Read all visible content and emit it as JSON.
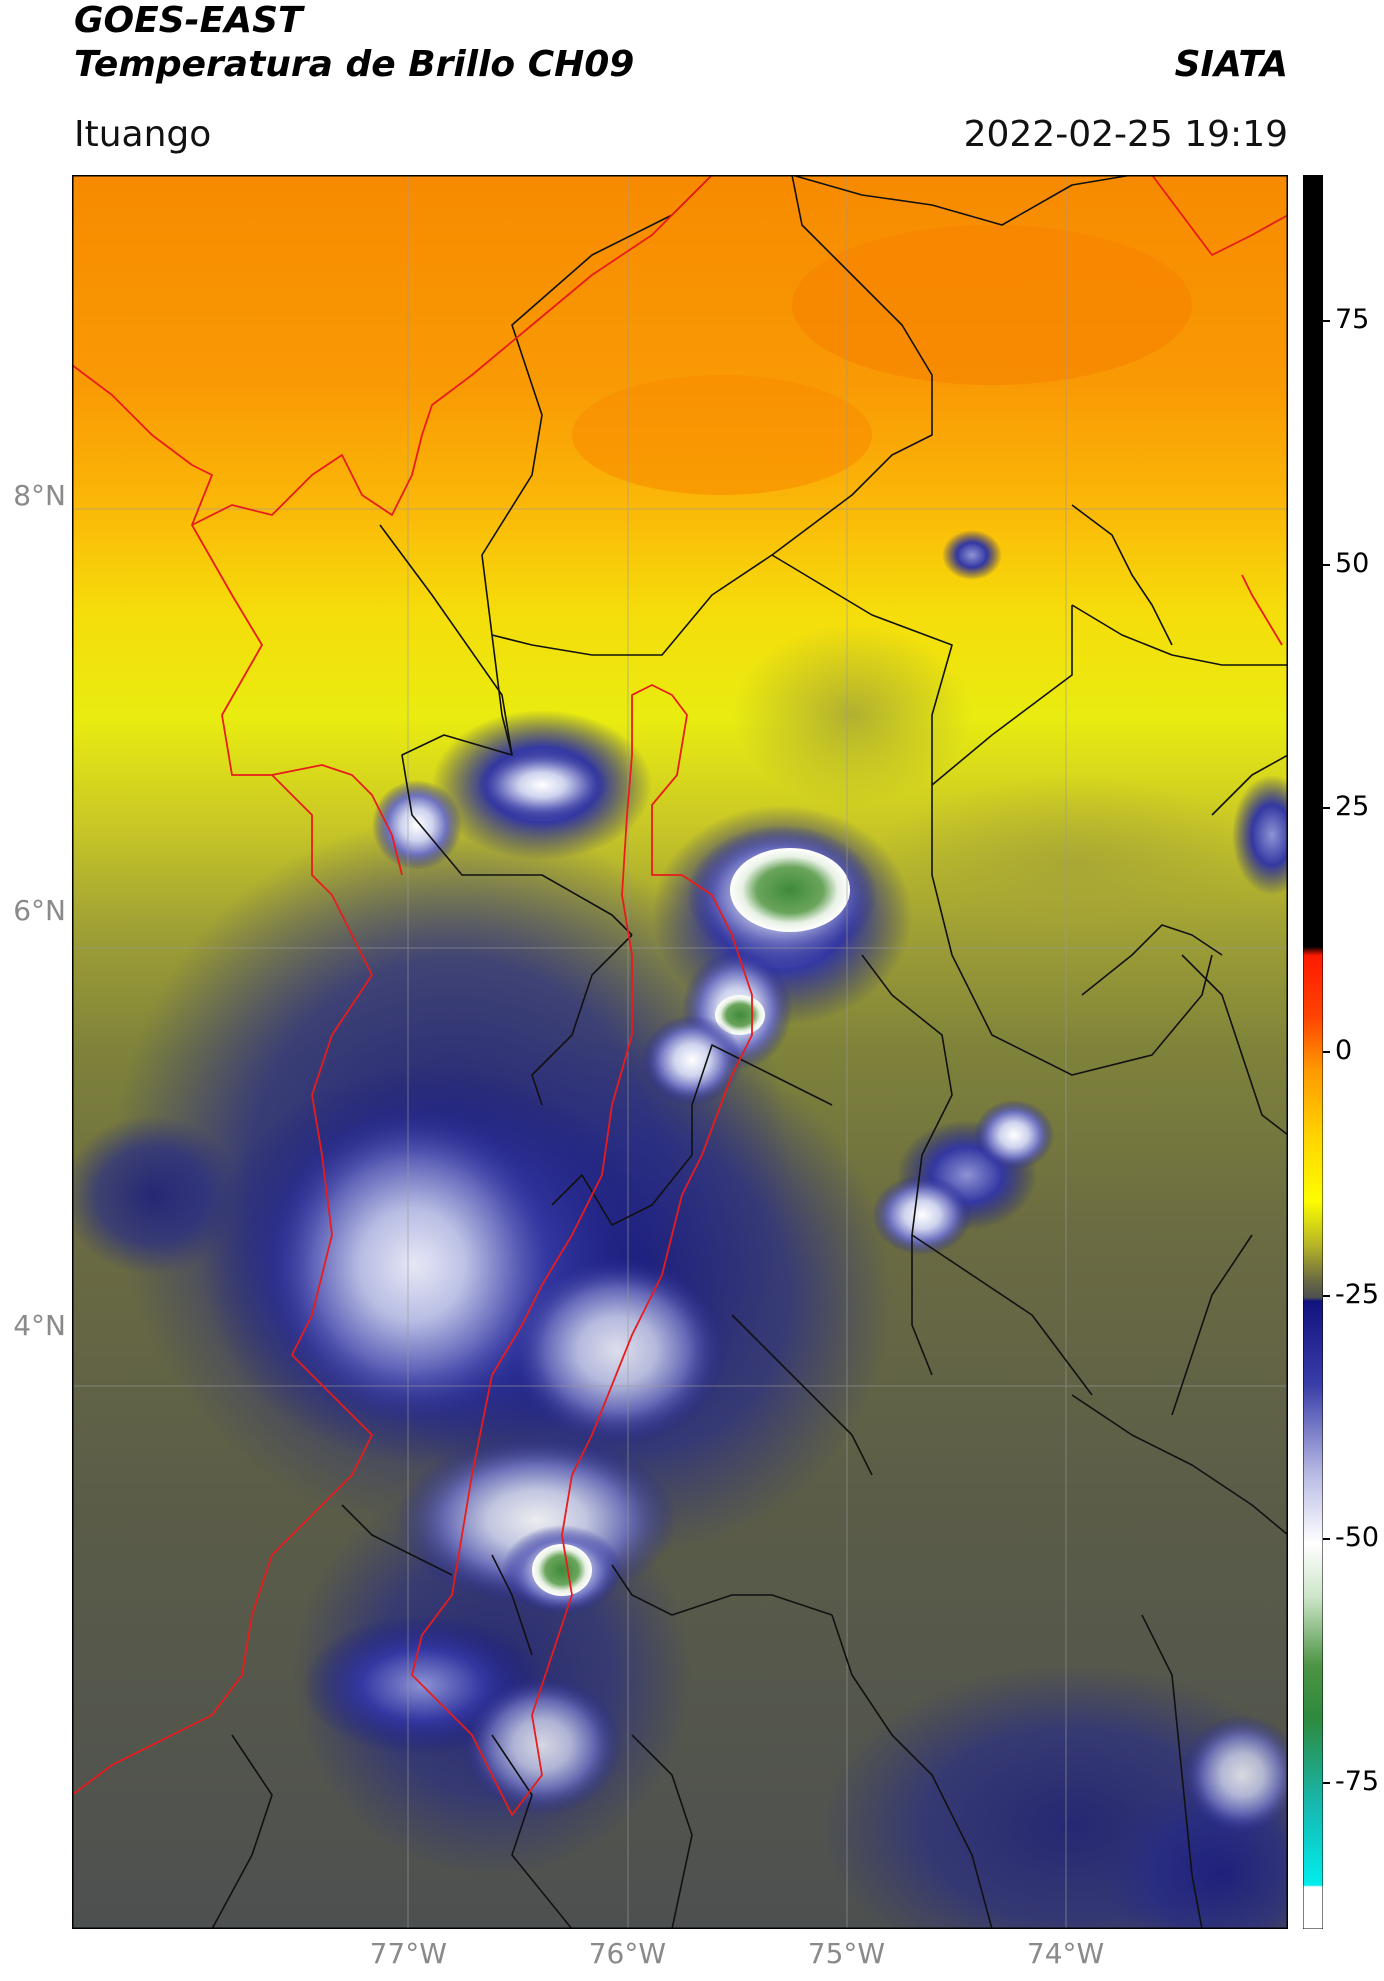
{
  "header": {
    "satellite": "GOES-EAST",
    "product": "Temperatura de Brillo CH09",
    "brand": "SIATA",
    "location": "Ituango",
    "datetime": "2022-02-25 19:19"
  },
  "map": {
    "lon_range": [
      -78.55,
      -73.0
    ],
    "lat_range": [
      1.1,
      9.55
    ],
    "lat_ticks": [
      {
        "value": 8,
        "label": "8°N"
      },
      {
        "value": 6,
        "label": "6°N"
      },
      {
        "value": 4,
        "label": "4°N"
      }
    ],
    "lon_ticks": [
      {
        "value": -77,
        "label": "77°W"
      },
      {
        "value": -76,
        "label": "76°W"
      },
      {
        "value": -75,
        "label": "75°W"
      },
      {
        "value": -74,
        "label": "74°W"
      }
    ],
    "colors": {
      "country_border": "#e81c1c",
      "department_border": "#111111",
      "gridline": "#9a9a9a"
    }
  },
  "colorbar": {
    "range": [
      -90,
      90
    ],
    "ticks": [
      {
        "value": 75,
        "label": "75"
      },
      {
        "value": 50,
        "label": "50"
      },
      {
        "value": 25,
        "label": "25"
      },
      {
        "value": 0,
        "label": "0"
      },
      {
        "value": -25,
        "label": "-25"
      },
      {
        "value": -50,
        "label": "-50"
      },
      {
        "value": -75,
        "label": "-75"
      }
    ]
  }
}
